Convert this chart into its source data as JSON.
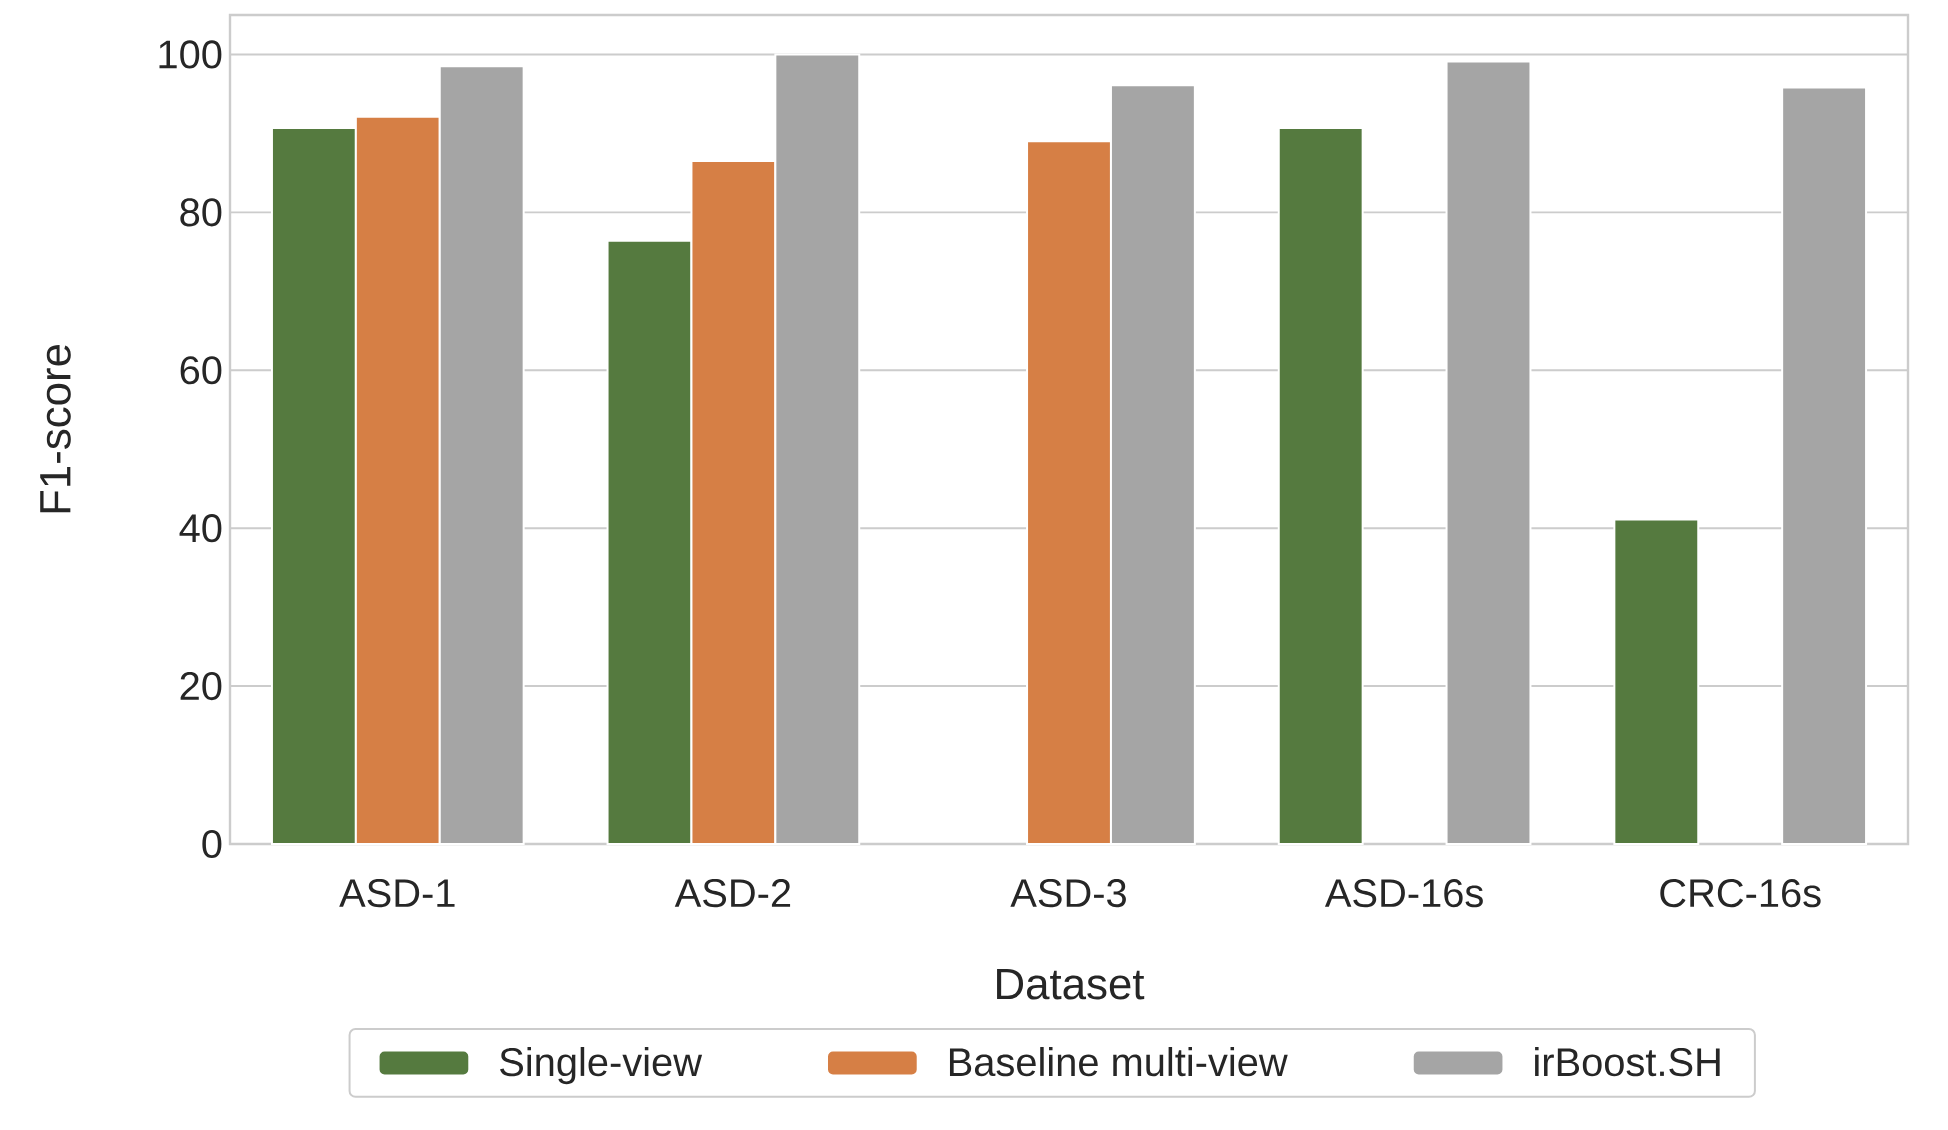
{
  "chart_data": {
    "type": "bar",
    "xlabel": "Dataset",
    "ylabel": "F1-score",
    "categories": [
      "ASD-1",
      "ASD-2",
      "ASD-3",
      "ASD-16s",
      "CRC-16s"
    ],
    "series": [
      {
        "name": "Single-view",
        "color": "#557a3f",
        "values": [
          90.7,
          76.4,
          null,
          90.7,
          41.1
        ]
      },
      {
        "name": "Baseline multi-view",
        "color": "#d67f45",
        "values": [
          92.1,
          86.5,
          89.0,
          null,
          null
        ]
      },
      {
        "name": "irBoost.SH",
        "color": "#a5a5a5",
        "values": [
          98.5,
          100,
          96.1,
          99.1,
          95.8
        ]
      }
    ],
    "ylim": [
      0,
      105
    ],
    "yticks": [
      0,
      20,
      40,
      60,
      80,
      100
    ],
    "grid": "y",
    "legend": "bottom"
  }
}
